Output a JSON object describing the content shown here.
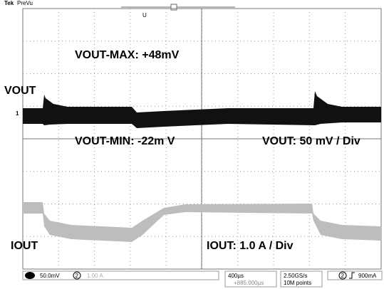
{
  "header": {
    "brand": "Tek",
    "mode": "PreVu",
    "marker": "U"
  },
  "labels": {
    "vout": "VOUT",
    "ch1_marker": "1",
    "vout_max": "VOUT-MAX: +48mV",
    "vout_min": "VOUT-MIN: -22m V",
    "vout_scale": "VOUT: 50 mV / Div",
    "iout": "IOUT",
    "iout_scale": "IOUT: 1.0 A / Div"
  },
  "status": {
    "ch1_scale": "50.0mV",
    "ch2": "2",
    "ch2_scale": "1.00 A",
    "timebase": "400µs",
    "position": "+885.000µs",
    "sample_rate": "2.50GS/s",
    "record": "10M points",
    "trigger_ch": "2",
    "trigger_level": "900mA"
  }
}
